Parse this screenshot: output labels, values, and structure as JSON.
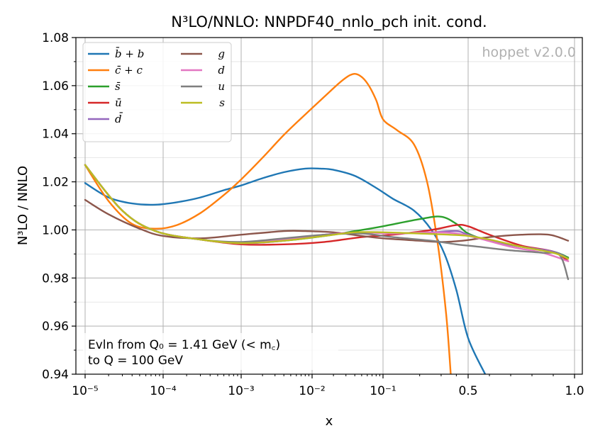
{
  "chart_data": {
    "type": "line",
    "title": "N³LO/NNLO: NNPDF40_nnlo_pch init. cond.",
    "xlabel": "x",
    "ylabel": "N³LO / NNLO",
    "xscale": "log-to-0.5-then-linear-to-1",
    "xlim": [
      1e-05,
      1.0
    ],
    "ylim": [
      0.94,
      1.08
    ],
    "grid": true,
    "legend_position": "top-left",
    "x_ticks": [
      {
        "value": 1e-05,
        "label": "10⁻⁵"
      },
      {
        "value": 0.0001,
        "label": "10⁻⁴"
      },
      {
        "value": 0.001,
        "label": "10⁻³"
      },
      {
        "value": 0.01,
        "label": "10⁻²"
      },
      {
        "value": 0.1,
        "label": "10⁻¹"
      },
      {
        "value": 0.5,
        "label": "0.5"
      },
      {
        "value": 1.0,
        "label": "1.0"
      }
    ],
    "y_ticks": [
      {
        "value": 0.94,
        "label": "0.94"
      },
      {
        "value": 0.96,
        "label": "0.96"
      },
      {
        "value": 0.98,
        "label": "0.98"
      },
      {
        "value": 1.0,
        "label": "1.00"
      },
      {
        "value": 1.02,
        "label": "1.02"
      },
      {
        "value": 1.04,
        "label": "1.04"
      },
      {
        "value": 1.06,
        "label": "1.06"
      },
      {
        "value": 1.08,
        "label": "1.08"
      }
    ],
    "watermark": "hoppet v2.0.0",
    "annotation_lines": [
      "Evln from Q₀ = 1.41 GeV (< m꜀)",
      "to Q = 100 GeV"
    ],
    "series": [
      {
        "name": "b̄ + b",
        "color": "#1f77b4",
        "points": [
          [
            1e-05,
            1.0195
          ],
          [
            2e-05,
            1.0135
          ],
          [
            4e-05,
            1.011
          ],
          [
            8e-05,
            1.0105
          ],
          [
            0.00015,
            1.0115
          ],
          [
            0.0003,
            1.0135
          ],
          [
            0.0006,
            1.0165
          ],
          [
            0.001,
            1.0185
          ],
          [
            0.002,
            1.0215
          ],
          [
            0.004,
            1.024
          ],
          [
            0.008,
            1.0255
          ],
          [
            0.013,
            1.0255
          ],
          [
            0.02,
            1.025
          ],
          [
            0.04,
            1.0225
          ],
          [
            0.08,
            1.0175
          ],
          [
            0.12,
            1.013
          ],
          [
            0.18,
            1.008
          ],
          [
            0.25,
            1.0
          ],
          [
            0.32,
            0.99
          ],
          [
            0.4,
            0.975
          ],
          [
            0.5,
            0.955
          ],
          [
            0.58,
            0.94
          ]
        ]
      },
      {
        "name": "c̄ + c",
        "color": "#ff7f0e",
        "points": [
          [
            1e-05,
            1.027
          ],
          [
            2e-05,
            1.012
          ],
          [
            4e-05,
            1.0025
          ],
          [
            8e-05,
            1.0005
          ],
          [
            0.00015,
            1.002
          ],
          [
            0.0003,
            1.007
          ],
          [
            0.0006,
            1.0145
          ],
          [
            0.001,
            1.021
          ],
          [
            0.002,
            1.03
          ],
          [
            0.004,
            1.0395
          ],
          [
            0.008,
            1.048
          ],
          [
            0.015,
            1.0555
          ],
          [
            0.025,
            1.0615
          ],
          [
            0.035,
            1.0645
          ],
          [
            0.045,
            1.0645
          ],
          [
            0.06,
            1.061
          ],
          [
            0.08,
            1.054
          ],
          [
            0.1,
            1.046
          ],
          [
            0.13,
            1.0415
          ],
          [
            0.18,
            1.0355
          ],
          [
            0.23,
            1.02
          ],
          [
            0.28,
            0.995
          ],
          [
            0.33,
            0.965
          ],
          [
            0.36,
            0.94
          ]
        ]
      },
      {
        "name": "s̄",
        "color": "#2ca02c",
        "points": [
          [
            1e-05,
            1.027
          ],
          [
            3e-05,
            1.008
          ],
          [
            8e-05,
            0.9995
          ],
          [
            0.0003,
            0.996
          ],
          [
            0.001,
            0.9945
          ],
          [
            0.004,
            0.9955
          ],
          [
            0.015,
            0.9975
          ],
          [
            0.04,
            0.9995
          ],
          [
            0.1,
            1.0015
          ],
          [
            0.2,
            1.0045
          ],
          [
            0.3,
            1.0055
          ],
          [
            0.4,
            1.0025
          ],
          [
            0.5,
            0.9985
          ],
          [
            0.6,
            0.9955
          ],
          [
            0.75,
            0.993
          ],
          [
            0.9,
            0.991
          ],
          [
            0.97,
            0.9885
          ]
        ]
      },
      {
        "name": "ū",
        "color": "#d62728",
        "points": [
          [
            1e-05,
            1.027
          ],
          [
            3e-05,
            1.008
          ],
          [
            8e-05,
            0.9995
          ],
          [
            0.0003,
            0.996
          ],
          [
            0.001,
            0.994
          ],
          [
            0.004,
            0.994
          ],
          [
            0.015,
            0.995
          ],
          [
            0.05,
            0.997
          ],
          [
            0.12,
            0.998
          ],
          [
            0.25,
            1.0
          ],
          [
            0.4,
            1.002
          ],
          [
            0.5,
            1.0015
          ],
          [
            0.6,
            0.998
          ],
          [
            0.75,
            0.9935
          ],
          [
            0.9,
            0.991
          ],
          [
            0.97,
            0.987
          ]
        ]
      },
      {
        "name": "d̄",
        "color": "#9467bd",
        "points": [
          [
            1e-05,
            1.027
          ],
          [
            3e-05,
            1.008
          ],
          [
            8e-05,
            0.9995
          ],
          [
            0.0003,
            0.996
          ],
          [
            0.001,
            0.9945
          ],
          [
            0.004,
            0.9955
          ],
          [
            0.015,
            0.998
          ],
          [
            0.05,
            0.999
          ],
          [
            0.12,
            0.9985
          ],
          [
            0.25,
            0.999
          ],
          [
            0.4,
            0.9995
          ],
          [
            0.5,
            0.998
          ],
          [
            0.6,
            0.9955
          ],
          [
            0.75,
            0.993
          ],
          [
            0.9,
            0.991
          ],
          [
            0.97,
            0.988
          ]
        ]
      },
      {
        "name": "g",
        "color": "#8c564b",
        "points": [
          [
            1e-05,
            1.0125
          ],
          [
            2e-05,
            1.0065
          ],
          [
            5e-05,
            1.0005
          ],
          [
            0.0001,
            0.9975
          ],
          [
            0.0003,
            0.9965
          ],
          [
            0.001,
            0.998
          ],
          [
            0.004,
            0.9995
          ],
          [
            0.008,
            0.9995
          ],
          [
            0.02,
            0.999
          ],
          [
            0.05,
            0.9975
          ],
          [
            0.1,
            0.9965
          ],
          [
            0.2,
            0.9955
          ],
          [
            0.3,
            0.995
          ],
          [
            0.45,
            0.9955
          ],
          [
            0.6,
            0.997
          ],
          [
            0.75,
            0.998
          ],
          [
            0.88,
            0.998
          ],
          [
            0.97,
            0.9955
          ]
        ]
      },
      {
        "name": "d",
        "color": "#e377c2",
        "points": [
          [
            1e-05,
            1.027
          ],
          [
            3e-05,
            1.008
          ],
          [
            8e-05,
            0.9995
          ],
          [
            0.0003,
            0.996
          ],
          [
            0.001,
            0.9945
          ],
          [
            0.004,
            0.996
          ],
          [
            0.015,
            0.998
          ],
          [
            0.05,
            0.999
          ],
          [
            0.12,
            0.9985
          ],
          [
            0.25,
            0.999
          ],
          [
            0.4,
            0.9985
          ],
          [
            0.55,
            0.9965
          ],
          [
            0.7,
            0.993
          ],
          [
            0.85,
            0.9905
          ],
          [
            0.97,
            0.987
          ]
        ]
      },
      {
        "name": "u",
        "color": "#7f7f7f",
        "points": [
          [
            1e-05,
            1.027
          ],
          [
            3e-05,
            1.008
          ],
          [
            8e-05,
            0.9995
          ],
          [
            0.0003,
            0.996
          ],
          [
            0.001,
            0.995
          ],
          [
            0.004,
            0.9965
          ],
          [
            0.015,
            0.998
          ],
          [
            0.05,
            0.9985
          ],
          [
            0.12,
            0.997
          ],
          [
            0.25,
            0.9955
          ],
          [
            0.4,
            0.994
          ],
          [
            0.55,
            0.993
          ],
          [
            0.7,
            0.9915
          ],
          [
            0.85,
            0.9905
          ],
          [
            0.93,
            0.9895
          ],
          [
            0.97,
            0.9795
          ]
        ]
      },
      {
        "name": "s",
        "color": "#bcbd22",
        "points": [
          [
            1e-05,
            1.027
          ],
          [
            3e-05,
            1.008
          ],
          [
            8e-05,
            0.9995
          ],
          [
            0.0003,
            0.996
          ],
          [
            0.001,
            0.9945
          ],
          [
            0.004,
            0.9955
          ],
          [
            0.015,
            0.9975
          ],
          [
            0.04,
            0.999
          ],
          [
            0.1,
            0.999
          ],
          [
            0.2,
            0.9985
          ],
          [
            0.35,
            0.998
          ],
          [
            0.5,
            0.9975
          ],
          [
            0.6,
            0.996
          ],
          [
            0.75,
            0.993
          ],
          [
            0.9,
            0.9905
          ],
          [
            0.97,
            0.988
          ]
        ]
      }
    ]
  }
}
